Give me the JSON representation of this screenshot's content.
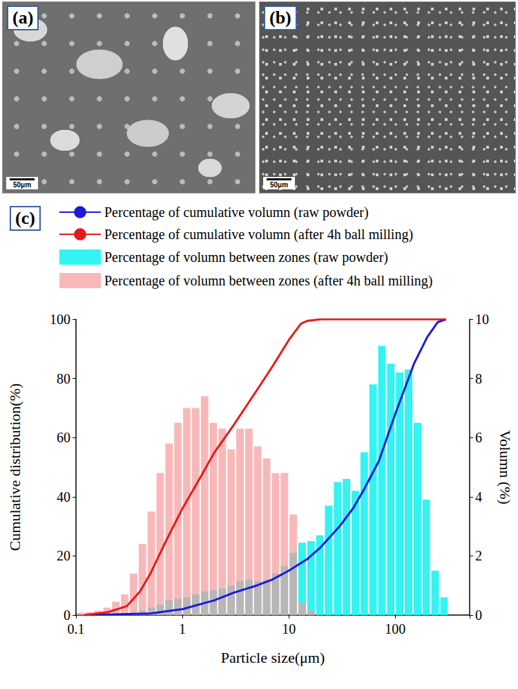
{
  "panels": [
    {
      "label": "(a)",
      "scale_bar": "50μm"
    },
    {
      "label": "(b)",
      "scale_bar": "50μm"
    }
  ],
  "chart_label": "(c)",
  "chart_data": {
    "type": "histogram",
    "xlabel": "Particle size(μm)",
    "ylabel": "Cumulative distribution(%)",
    "y2label": "Volumn (%)",
    "log": "x",
    "grid": false,
    "legend": "top-left",
    "xlim": [
      0.1,
      500
    ],
    "xticks": [
      0.1,
      1,
      10,
      100
    ],
    "ylim": [
      0,
      100
    ],
    "yticks": [
      0,
      20,
      40,
      60,
      80,
      100
    ],
    "y2lim": [
      0,
      10
    ],
    "y2ticks": [
      0,
      2,
      4,
      6,
      8,
      10
    ],
    "bins": [
      0.1,
      0.121,
      0.147,
      0.178,
      0.215,
      0.261,
      0.316,
      0.383,
      0.464,
      0.562,
      0.681,
      0.825,
      1,
      1.21,
      1.47,
      1.78,
      2.15,
      2.61,
      3.16,
      3.83,
      4.64,
      5.62,
      6.81,
      8.25,
      10,
      12.1,
      14.7,
      17.8,
      21.5,
      26.1,
      31.6,
      38.3,
      46.4,
      56.2,
      68.1,
      82.5,
      100,
      121,
      147,
      178,
      215,
      261,
      316
    ],
    "series": [
      {
        "name": "Percentage of cumulative volumn (raw powder)",
        "type": "line",
        "color": "#1a1adb",
        "x": [
          0.12,
          0.5,
          1,
          2,
          3,
          5,
          7,
          10,
          15,
          20,
          30,
          40,
          50,
          70,
          100,
          150,
          200,
          250,
          300
        ],
        "values": [
          0,
          0.5,
          2,
          5,
          7.5,
          10,
          12,
          15,
          19,
          23,
          30,
          36,
          42,
          52,
          68,
          85,
          94,
          99,
          100
        ]
      },
      {
        "name": "Percentage of cumulative volumn (after 4h ball milling)",
        "type": "line",
        "color": "#e8191a",
        "x": [
          0.12,
          0.2,
          0.3,
          0.4,
          0.5,
          0.7,
          1,
          1.5,
          2,
          3,
          5,
          7,
          10,
          13,
          15,
          20,
          300
        ],
        "values": [
          0,
          1,
          3,
          8,
          14,
          25,
          36,
          47,
          55,
          64,
          76,
          84,
          93,
          98.5,
          99.5,
          100,
          100
        ]
      },
      {
        "name": "Percentage of volumn between zones (raw powder)",
        "type": "histogram",
        "axis": "y2",
        "color": "#33f3f3",
        "values": [
          0,
          0,
          0,
          0,
          0.02,
          0.05,
          0.08,
          0.15,
          0.25,
          0.35,
          0.5,
          0.55,
          0.6,
          0.7,
          0.8,
          0.85,
          0.9,
          1.0,
          1.15,
          1.2,
          1.15,
          1.2,
          1.4,
          1.65,
          2.1,
          2.45,
          2.5,
          2.7,
          3.7,
          4.5,
          4.6,
          4.2,
          5.5,
          7.8,
          9.1,
          8.5,
          8.2,
          8.3,
          6.5,
          3.9,
          1.5,
          0.6
        ]
      },
      {
        "name": "Percentage of volumn between zones (after 4h ball milling)",
        "type": "histogram",
        "axis": "y2",
        "color": "#f79a9a",
        "values": [
          0.08,
          0.1,
          0.15,
          0.25,
          0.45,
          0.7,
          1.4,
          2.4,
          3.5,
          4.8,
          5.8,
          6.5,
          7.0,
          7.0,
          7.4,
          6.5,
          6.3,
          5.6,
          6.3,
          6.3,
          5.7,
          5.3,
          4.8,
          4.8,
          3.4,
          0.4,
          0.15,
          0,
          0,
          0,
          0,
          0,
          0,
          0,
          0,
          0,
          0,
          0,
          0,
          0,
          0,
          0
        ]
      }
    ]
  }
}
